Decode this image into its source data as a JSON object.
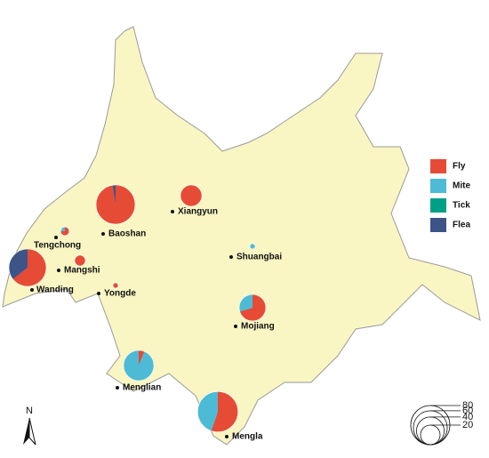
{
  "legend": [
    {
      "name": "Fly",
      "color": "#e64b35"
    },
    {
      "name": "Mite",
      "color": "#4dbbd5"
    },
    {
      "name": "Tick",
      "color": "#00a087"
    },
    {
      "name": "Flea",
      "color": "#3c5488"
    }
  ],
  "size_scale": {
    "ticks": [
      80,
      60,
      40,
      20
    ]
  },
  "north_label": "N",
  "sites": [
    {
      "name": "Baoshan",
      "values": [
        78,
        0,
        0,
        2
      ]
    },
    {
      "name": "Xiangyun",
      "values": [
        24,
        0,
        0,
        0
      ]
    },
    {
      "name": "Tengchong",
      "values": [
        3,
        1,
        0,
        0
      ]
    },
    {
      "name": "Mangshi",
      "values": [
        6,
        0,
        0,
        0
      ]
    },
    {
      "name": "Wanding",
      "values": [
        47,
        0,
        0,
        26
      ]
    },
    {
      "name": "Yongde",
      "values": [
        1.5,
        0,
        0,
        0
      ]
    },
    {
      "name": "Shuangbai",
      "values": [
        0,
        1.5,
        0,
        0
      ]
    },
    {
      "name": "Mojiang",
      "values": [
        26,
        11,
        0,
        0
      ]
    },
    {
      "name": "Menglian",
      "values": [
        3,
        45,
        0,
        0
      ]
    },
    {
      "name": "Mengla",
      "values": [
        47,
        38,
        0,
        0
      ]
    }
  ]
}
